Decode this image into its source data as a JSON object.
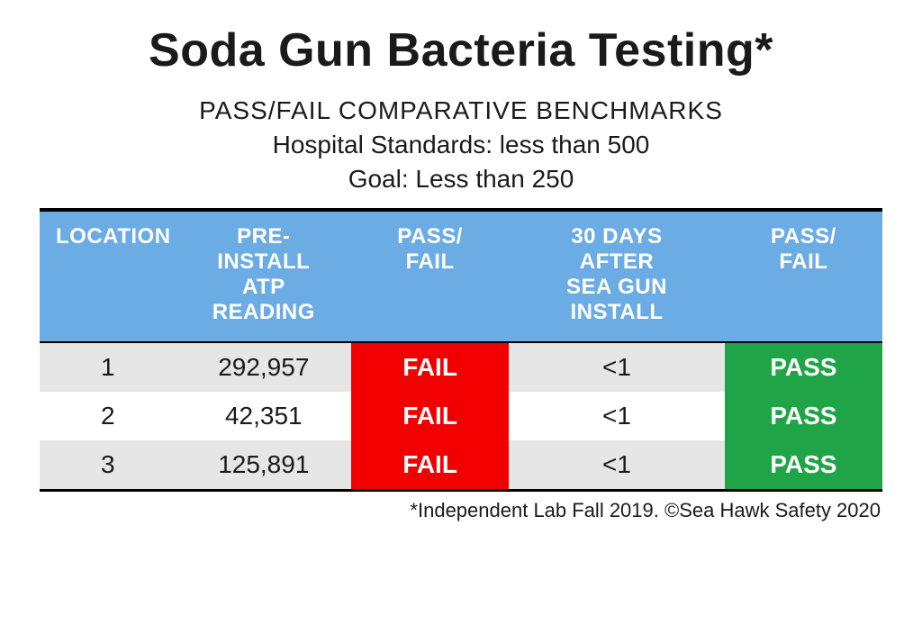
{
  "title": "Soda Gun Bacteria Testing*",
  "benchmarks": {
    "heading": "PASS/FAIL COMPARATIVE BENCHMARKS",
    "hospital": "Hospital Standards: less than 500",
    "goal": "Goal: Less than 250"
  },
  "table": {
    "header_bg": "#6cace4",
    "header_text_color": "#ffffff",
    "row_alt_bg": "#e6e6e6",
    "row_plain_bg": "#ffffff",
    "fail_bg": "#f20000",
    "pass_bg": "#1fa547",
    "border_color": "#000000",
    "font_family": "Segoe UI / Helvetica Neue / Arial",
    "header_fontsize_pt": 18,
    "cell_fontsize_pt": 21,
    "columns": [
      {
        "key": "location",
        "label": "LOCATION",
        "width_pct": 15
      },
      {
        "key": "pre",
        "label": "PRE-\nINSTALL\nATP\nREADING",
        "width_pct": 21
      },
      {
        "key": "pf1",
        "label": "PASS/\nFAIL",
        "width_pct": 19
      },
      {
        "key": "after",
        "label": "30 DAYS\nAFTER\nSEA GUN\nINSTALL",
        "width_pct": 26
      },
      {
        "key": "pf2",
        "label": "PASS/\nFAIL",
        "width_pct": 19
      }
    ],
    "rows": [
      {
        "location": "1",
        "pre": "292,957",
        "pf1": "FAIL",
        "after": "<1",
        "pf2": "PASS"
      },
      {
        "location": "2",
        "pre": "42,351",
        "pf1": "FAIL",
        "after": "<1",
        "pf2": "PASS"
      },
      {
        "location": "3",
        "pre": "125,891",
        "pf1": "FAIL",
        "after": "<1",
        "pf2": "PASS"
      }
    ]
  },
  "footnote": "*Independent Lab Fall 2019. ©Sea Hawk Safety 2020"
}
